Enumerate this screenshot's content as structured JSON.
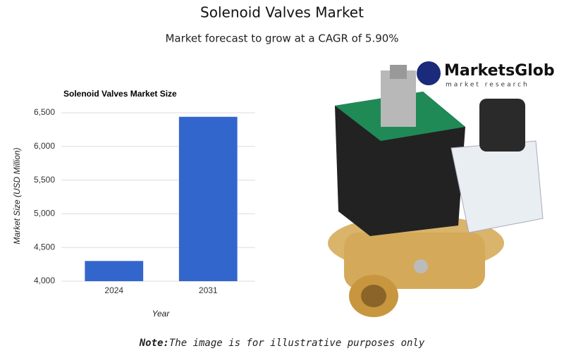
{
  "header": {
    "title": "Solenoid Valves Market",
    "subtitle": "Market forecast to grow at a CAGR of 5.90%"
  },
  "logo": {
    "name": "MarketsGlob",
    "tagline": "market research"
  },
  "chart_data": {
    "type": "bar",
    "title": "Solenoid Valves Market Size",
    "categories": [
      "2024",
      "2031"
    ],
    "values": [
      4300,
      6440
    ],
    "color": "#3366cc",
    "x_label": "Year",
    "y_label": "Market Size (USD Million)",
    "ylim": [
      4000,
      6500
    ],
    "yticks": [
      {
        "value": 4000,
        "label": "4,000"
      },
      {
        "value": 4500,
        "label": "4,500"
      },
      {
        "value": 5000,
        "label": "5,000"
      },
      {
        "value": 5500,
        "label": "5,500"
      },
      {
        "value": 6000,
        "label": "6,000"
      },
      {
        "value": 6500,
        "label": "6,500"
      }
    ],
    "grid": true
  },
  "note": {
    "label": "Note:",
    "text": "The image is for illustrative purposes only"
  }
}
